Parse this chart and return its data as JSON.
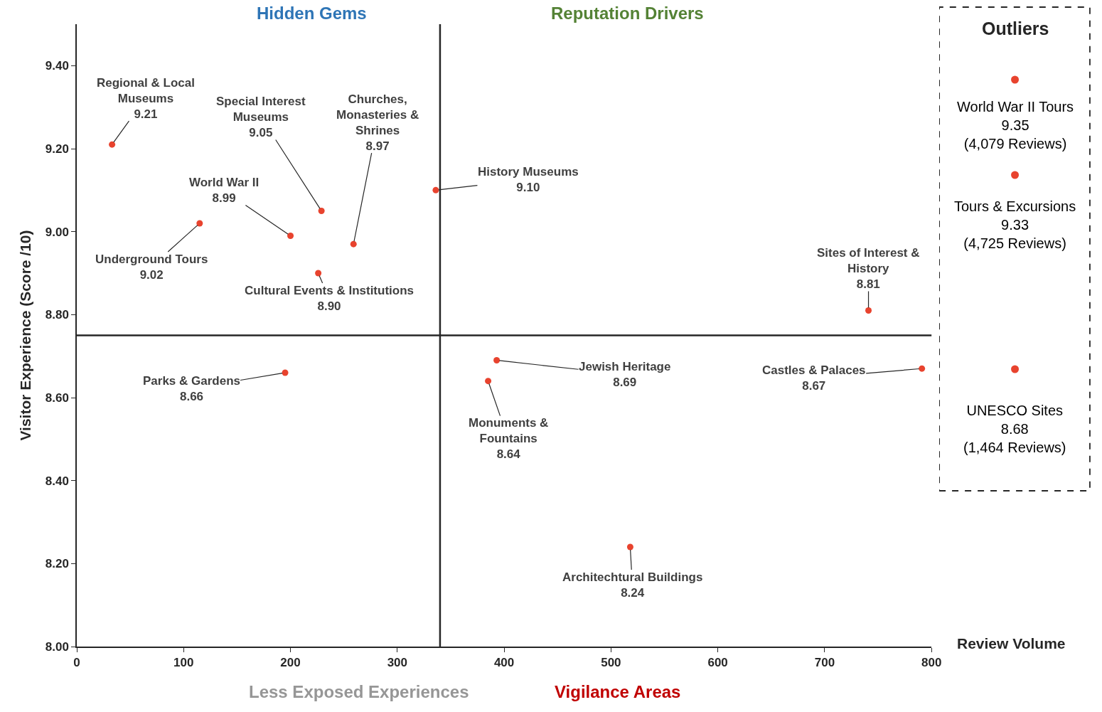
{
  "chart_data": [
    {
      "type": "scatter",
      "xlabel": "Review Volume",
      "ylabel": "Visitor Experience (Score /10)",
      "x": [
        33,
        229,
        259,
        200,
        115,
        226,
        336,
        741,
        195,
        393,
        385,
        791,
        518
      ],
      "values": [
        9.21,
        9.05,
        8.97,
        8.99,
        9.02,
        8.9,
        9.1,
        8.81,
        8.66,
        8.69,
        8.64,
        8.67,
        8.24
      ],
      "color": "#e8432e",
      "marker": "circle",
      "xlim": [
        0,
        800
      ],
      "xticks": [
        0,
        100,
        200,
        300,
        400,
        500,
        600,
        700,
        800
      ],
      "ylim": [
        8.0,
        9.5
      ],
      "yticks": [
        {
          "value": 8.0,
          "label": "8.00"
        },
        {
          "value": 8.2,
          "label": "8.20"
        },
        {
          "value": 8.4,
          "label": "8.40"
        },
        {
          "value": 8.6,
          "label": "8.60"
        },
        {
          "value": 8.8,
          "label": "8.80"
        },
        {
          "value": 9.0,
          "label": "9.00"
        },
        {
          "value": 9.2,
          "label": "9.20"
        },
        {
          "value": 9.4,
          "label": "9.40"
        }
      ],
      "ref_lines": [
        {
          "axis": "x",
          "value": 340,
          "color": "#262626"
        },
        {
          "axis": "y",
          "value": 8.75,
          "color": "#262626"
        }
      ],
      "annotations": [
        {
          "text": "Regional & Local\nMuseums\n9.21",
          "x": 33,
          "y": 9.21
        },
        {
          "text": "Special Interest\nMuseums\n9.05",
          "x": 229,
          "y": 9.05
        },
        {
          "text": "Churches,\nMonasteries &\nShrines\n8.97",
          "x": 259,
          "y": 8.97
        },
        {
          "text": "World War II\n8.99",
          "x": 200,
          "y": 8.99
        },
        {
          "text": "Underground Tours\n9.02",
          "x": 115,
          "y": 9.02
        },
        {
          "text": "Cultural Events & Institutions\n8.90",
          "x": 226,
          "y": 8.9
        },
        {
          "text": "History Museums\n9.10",
          "x": 336,
          "y": 9.1
        },
        {
          "text": "Sites of Interest &\nHistory\n8.81",
          "x": 741,
          "y": 8.81
        },
        {
          "text": "Parks & Gardens\n8.66",
          "x": 195,
          "y": 8.66
        },
        {
          "text": "Jewish Heritage\n8.69",
          "x": 393,
          "y": 8.69
        },
        {
          "text": "Monuments &\nFountains\n8.64",
          "x": 385,
          "y": 8.64
        },
        {
          "text": "Castles & Palaces\n8.67",
          "x": 791,
          "y": 8.67
        },
        {
          "text": "Architechtural Buildings\n8.24",
          "x": 518,
          "y": 8.24
        },
        "Hidden Gems",
        "Reputation Drivers",
        "Less Exposed Experiences",
        "Vigilance Areas"
      ]
    },
    {
      "type": "other",
      "title": "Outliers",
      "color": "#e8432e",
      "annotations": [
        "World War II Tours\n9.35\n(4,079 Reviews)",
        "Tours & Excursions\n9.33\n(4,725 Reviews)",
        "UNESCO Sites\n8.68\n(1,464 Reviews)"
      ]
    }
  ]
}
